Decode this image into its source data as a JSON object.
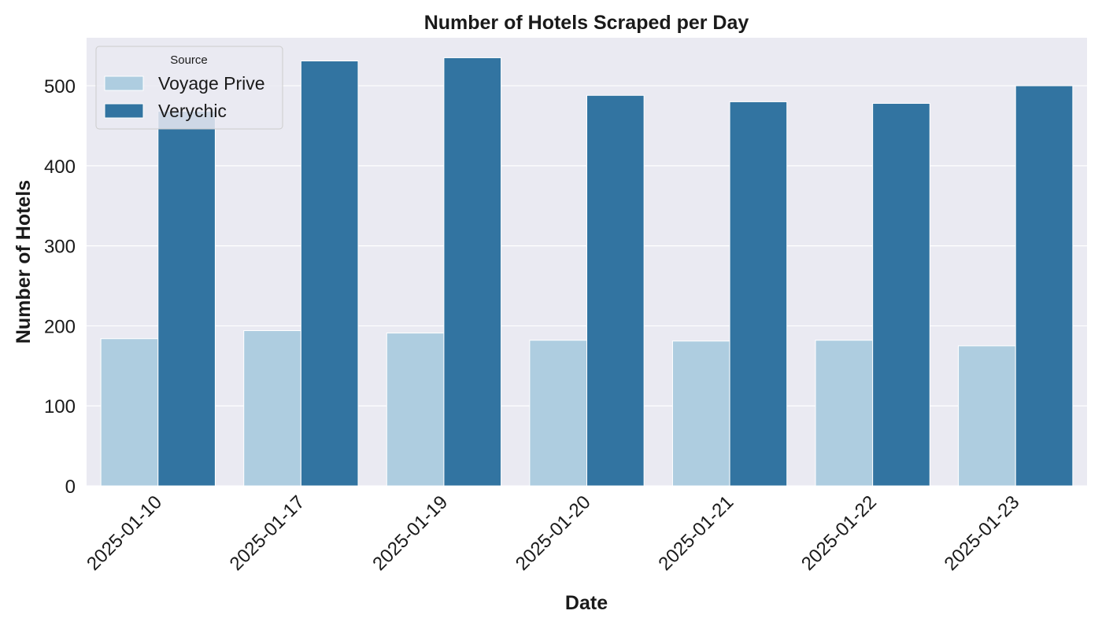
{
  "chart_data": {
    "type": "bar",
    "title": "Number of Hotels Scraped per Day",
    "xlabel": "Date",
    "ylabel": "Number of Hotels",
    "categories": [
      "2025-01-10",
      "2025-01-17",
      "2025-01-19",
      "2025-01-20",
      "2025-01-21",
      "2025-01-22",
      "2025-01-23"
    ],
    "series": [
      {
        "name": "Voyage Prive",
        "color": "#aecde0",
        "values": [
          184,
          194,
          191,
          182,
          181,
          182,
          175
        ]
      },
      {
        "name": "Verychic",
        "color": "#3274a1",
        "values": [
          468,
          531,
          535,
          488,
          480,
          478,
          500
        ]
      }
    ],
    "ylim": [
      0,
      560
    ],
    "yticks": [
      0,
      100,
      200,
      300,
      400,
      500
    ],
    "grid": true,
    "legend": {
      "title": "Source",
      "placement": "top-left"
    },
    "plot_background": "#eaeaf2"
  }
}
